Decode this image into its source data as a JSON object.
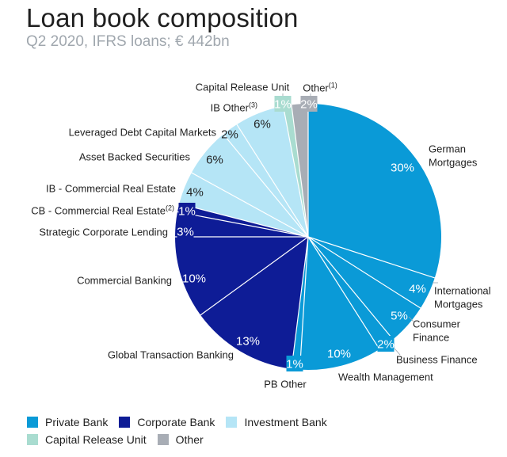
{
  "header": {
    "title": "Loan book composition",
    "subtitle": "Q2 2020, IFRS loans; € 442bn"
  },
  "colors": {
    "private_bank": "#0a9ad7",
    "corporate_bank": "#0e1c96",
    "investment_bank": "#b5e5f6",
    "capital_release_unit": "#a9dcd0",
    "other": "#a8adb5"
  },
  "chart_data": {
    "type": "pie",
    "title": "Loan book composition",
    "subtitle": "Q2 2020, IFRS loans; € 442bn",
    "legend_position": "bottom-left",
    "slices": [
      {
        "label": "German Mortgages",
        "value": 30,
        "value_label": "30%",
        "group": "Private Bank"
      },
      {
        "label": "International Mortgages",
        "value": 4,
        "value_label": "4%",
        "group": "Private Bank"
      },
      {
        "label": "Consumer Finance",
        "value": 5,
        "value_label": "5%",
        "group": "Private Bank"
      },
      {
        "label": "Business Finance",
        "value": 2,
        "value_label": "2%",
        "group": "Private Bank"
      },
      {
        "label": "Wealth Management",
        "value": 10,
        "value_label": "10%",
        "group": "Private Bank"
      },
      {
        "label": "PB Other",
        "value": 1,
        "value_label": "1%",
        "group": "Private Bank"
      },
      {
        "label": "Global Transaction Banking",
        "value": 13,
        "value_label": "13%",
        "group": "Corporate Bank"
      },
      {
        "label": "Commercial Banking",
        "value": 10,
        "value_label": "10%",
        "group": "Corporate Bank"
      },
      {
        "label": "Strategic Corporate Lending",
        "value": 3,
        "value_label": "3%",
        "group": "Corporate Bank"
      },
      {
        "label": "CB - Commercial Real Estate",
        "label_sup": "(2)",
        "value": 1,
        "value_label": "1%",
        "group": "Corporate Bank"
      },
      {
        "label": "IB - Commercial Real Estate",
        "value": 4,
        "value_label": "4%",
        "group": "Investment Bank"
      },
      {
        "label": "Asset Backed Securities",
        "value": 6,
        "value_label": "6%",
        "group": "Investment Bank"
      },
      {
        "label": "Leveraged Debt Capital Markets",
        "value": 2,
        "value_label": "2%",
        "group": "Investment Bank"
      },
      {
        "label": "IB Other",
        "label_sup": "(3)",
        "value": 6,
        "value_label": "6%",
        "group": "Investment Bank"
      },
      {
        "label": "Capital Release Unit",
        "value": 1,
        "value_label": "1%",
        "group": "Capital Release Unit"
      },
      {
        "label": "Other",
        "label_sup": "(1)",
        "value": 2,
        "value_label": "2%",
        "group": "Other"
      }
    ]
  },
  "legend": {
    "items": [
      {
        "label": "Private Bank",
        "color": "#0a9ad7"
      },
      {
        "label": "Corporate Bank",
        "color": "#0e1c96"
      },
      {
        "label": "Investment Bank",
        "color": "#b5e5f6"
      },
      {
        "label": "Capital Release Unit",
        "color": "#a9dcd0"
      },
      {
        "label": "Other",
        "color": "#a8adb5"
      }
    ]
  }
}
